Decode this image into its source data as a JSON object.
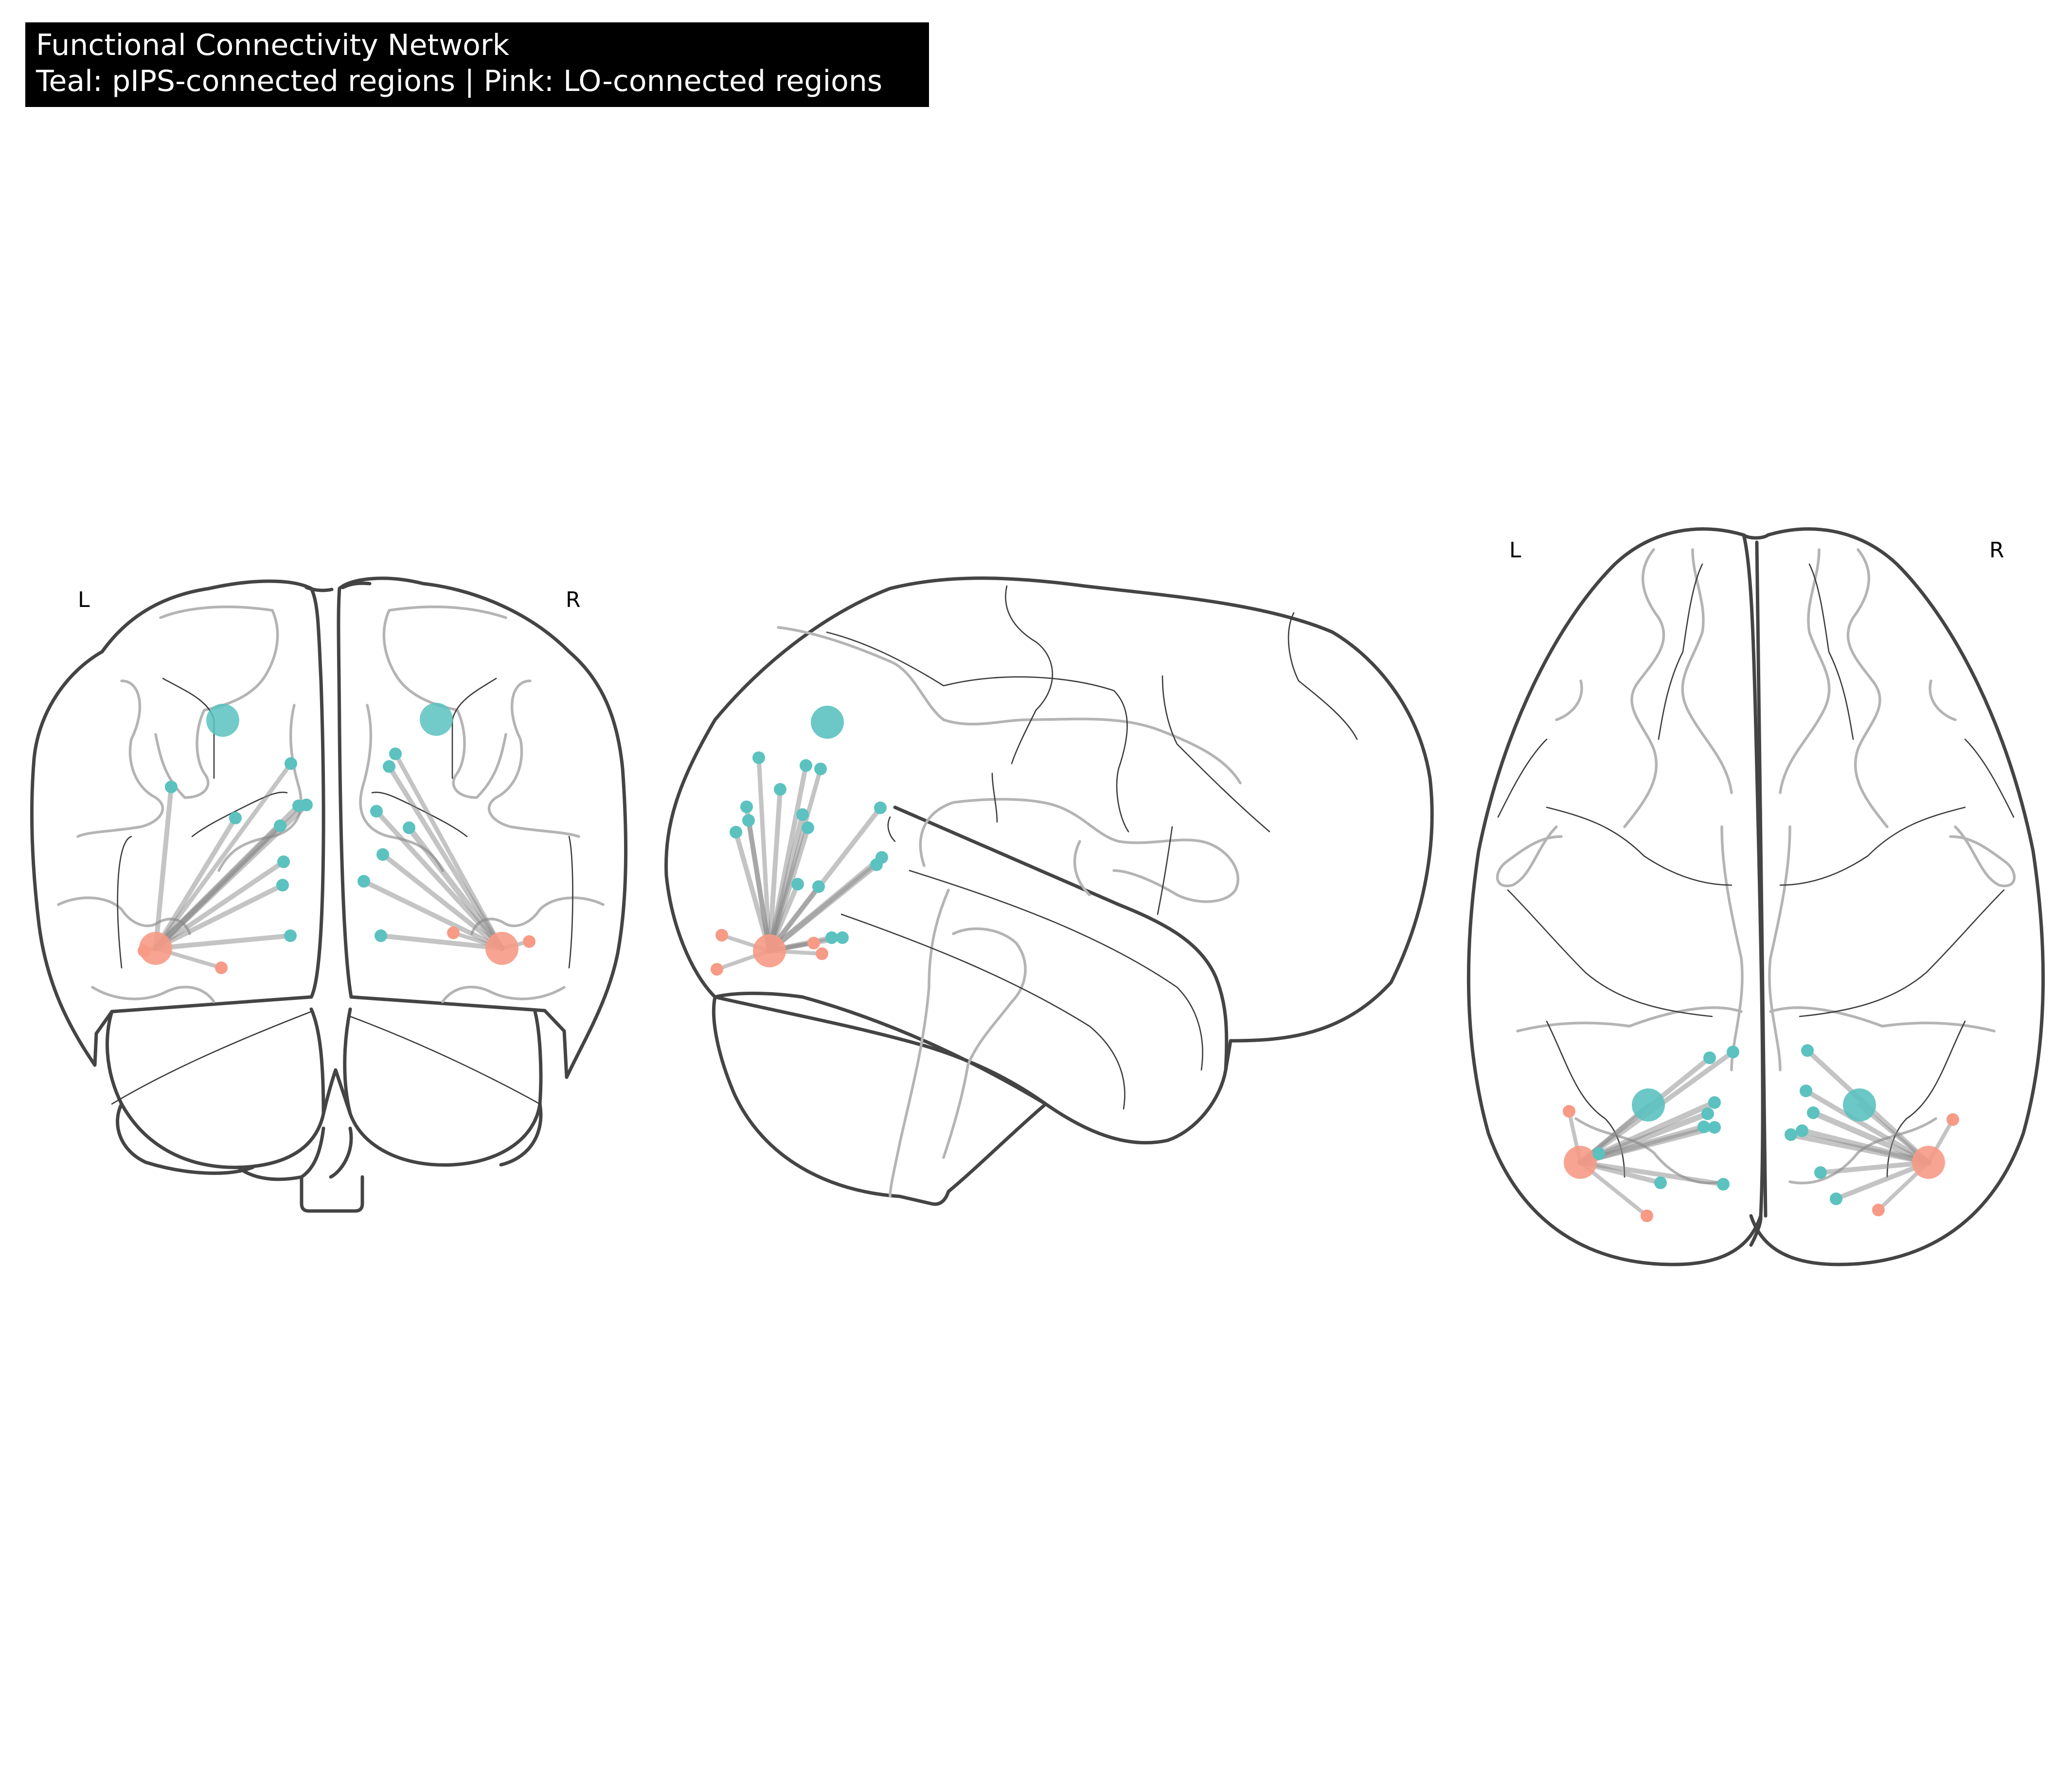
{
  "title": {
    "line1": "Functional Connectivity Network",
    "line2": "Teal: pIPS-connected regions | Pink: LO-connected regions"
  },
  "labels": {
    "coronal_left": "L",
    "coronal_right": "R",
    "axial_left": "L",
    "axial_right": "R"
  },
  "colors": {
    "teal": "#5bc2c0",
    "pink": "#f79a86",
    "edge": "#8a8a8a",
    "outline": "#444444",
    "sulcus": "#b4b4b4",
    "title_bg": "#000000",
    "title_fg": "#ffffff"
  },
  "views": [
    "coronal",
    "sagittal",
    "axial"
  ],
  "legend": {
    "teal": "pIPS-connected regions",
    "pink": "LO-connected regions"
  }
}
